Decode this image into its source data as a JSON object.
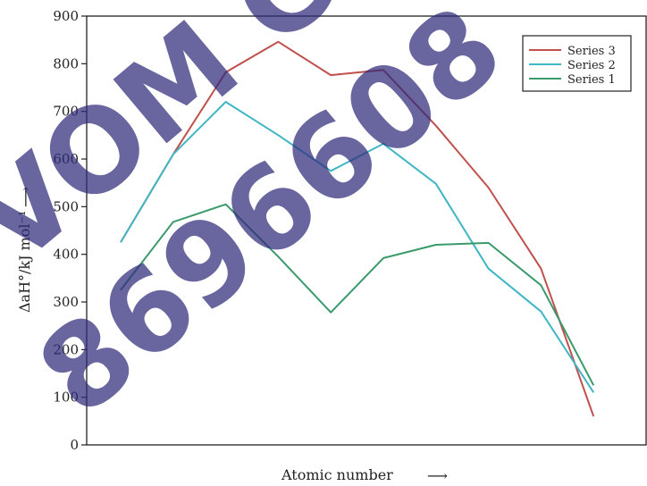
{
  "watermark": {
    "line1": "VOM C",
    "line2": "8696608",
    "color": "#2e2a7a"
  },
  "chart_data": {
    "type": "line",
    "title": "",
    "xlabel": "Atomic number",
    "xlabel_arrow": "⟶",
    "ylabel": "ΔaH°/kJ mol⁻¹",
    "ylabel_arrow": "⟶",
    "ylim": [
      0,
      900
    ],
    "yticks": [
      0,
      100,
      200,
      300,
      400,
      500,
      600,
      700,
      800,
      900
    ],
    "x": [
      1,
      2,
      3,
      4,
      5,
      6,
      7,
      8,
      9,
      10,
      11
    ],
    "grid": false,
    "legend": "top-right",
    "series": [
      {
        "name": "Series 3",
        "color": "#c0504d",
        "values": [
          425,
          610,
          782,
          846,
          776,
          787,
          670,
          540,
          370,
          60,
          null
        ]
      },
      {
        "name": "Series 2",
        "color": "#3fb6c4",
        "values": [
          425,
          610,
          720,
          650,
          575,
          632,
          548,
          370,
          280,
          110,
          null
        ]
      },
      {
        "name": "Series 1",
        "color": "#3a9a6c",
        "values": [
          325,
          468,
          505,
          395,
          278,
          392,
          420,
          424,
          335,
          125,
          null
        ]
      }
    ]
  }
}
